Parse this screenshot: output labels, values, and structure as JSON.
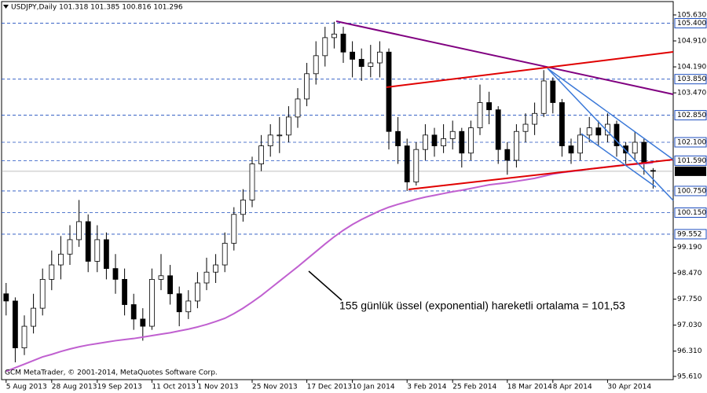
{
  "chart_data": {
    "type": "candlestick",
    "title": "USDJPY,Daily  101.318 101.385 100.816 101.296",
    "copyright": "GCM MetaTrader, © 2001-2014, MetaQuotes Software Corp.",
    "annotation": "155 günlük üssel (exponential) hareketli ortalama = 101,53",
    "ylim": [
      95.52,
      106.0
    ],
    "yticks": [
      {
        "value": 105.63,
        "label": "105.630"
      },
      {
        "value": 104.91,
        "label": "104.910"
      },
      {
        "value": 104.19,
        "label": "104.190"
      },
      {
        "value": 103.47,
        "label": "103.470"
      },
      {
        "value": 99.19,
        "label": "99.190"
      },
      {
        "value": 98.47,
        "label": "98.470"
      },
      {
        "value": 97.75,
        "label": "97.750"
      },
      {
        "value": 97.03,
        "label": "97.030"
      },
      {
        "value": 96.31,
        "label": "96.310"
      },
      {
        "value": 95.61,
        "label": "95.610"
      }
    ],
    "levels": [
      {
        "value": 105.4,
        "label": "105.400"
      },
      {
        "value": 103.85,
        "label": "103.850"
      },
      {
        "value": 102.85,
        "label": "102.850"
      },
      {
        "value": 102.1,
        "label": "102.100"
      },
      {
        "value": 101.59,
        "label": "101.590"
      },
      {
        "value": 100.75,
        "label": "100.750"
      },
      {
        "value": 100.15,
        "label": "100.150"
      },
      {
        "value": 99.552,
        "label": "99.552"
      }
    ],
    "current_price": {
      "value": 101.296,
      "label": "101.296"
    },
    "categories": [
      "5 Aug 2013",
      null,
      null,
      null,
      null,
      "28 Aug 2013",
      null,
      null,
      null,
      null,
      "19 Sep 2013",
      null,
      null,
      null,
      null,
      null,
      "11 Oct 2013",
      null,
      null,
      null,
      null,
      "1 Nov 2013",
      null,
      null,
      null,
      null,
      null,
      "25 Nov 2013",
      null,
      null,
      null,
      null,
      null,
      "17 Dec 2013",
      null,
      null,
      null,
      null,
      "10 Jan 2014",
      null,
      null,
      null,
      null,
      null,
      "3 Feb 2014",
      null,
      null,
      null,
      null,
      "25 Feb 2014",
      null,
      null,
      null,
      null,
      null,
      "18 Mar 2014",
      null,
      null,
      null,
      null,
      "8 Apr 2014",
      null,
      null,
      null,
      null,
      null,
      "30 Apr 2014",
      null,
      null,
      null,
      null,
      null
    ],
    "candles": [
      [
        97.9,
        98.2,
        97.3,
        97.7
      ],
      [
        97.7,
        97.8,
        96.0,
        96.4
      ],
      [
        96.4,
        97.3,
        96.2,
        97.0
      ],
      [
        97.0,
        97.9,
        96.8,
        97.5
      ],
      [
        97.5,
        98.6,
        97.3,
        98.3
      ],
      [
        98.3,
        99.1,
        98.0,
        98.7
      ],
      [
        98.7,
        99.5,
        98.3,
        99.0
      ],
      [
        99.0,
        99.8,
        98.7,
        99.4
      ],
      [
        99.4,
        100.5,
        99.2,
        99.9
      ],
      [
        99.9,
        100.1,
        98.5,
        98.8
      ],
      [
        98.8,
        99.8,
        98.5,
        99.4
      ],
      [
        99.4,
        99.6,
        98.3,
        98.6
      ],
      [
        98.6,
        99.0,
        97.9,
        98.3
      ],
      [
        98.3,
        98.6,
        97.3,
        97.6
      ],
      [
        97.6,
        97.9,
        96.9,
        97.2
      ],
      [
        97.2,
        97.5,
        96.6,
        97.0
      ],
      [
        97.0,
        98.6,
        96.9,
        98.3
      ],
      [
        98.3,
        99.0,
        98.0,
        98.4
      ],
      [
        98.4,
        98.7,
        97.6,
        97.9
      ],
      [
        97.9,
        98.1,
        97.0,
        97.4
      ],
      [
        97.4,
        98.0,
        97.2,
        97.7
      ],
      [
        97.7,
        98.5,
        97.5,
        98.2
      ],
      [
        98.2,
        98.9,
        98.0,
        98.5
      ],
      [
        98.5,
        99.0,
        98.2,
        98.7
      ],
      [
        98.7,
        99.6,
        98.5,
        99.3
      ],
      [
        99.3,
        100.3,
        99.1,
        100.1
      ],
      [
        100.1,
        100.8,
        99.9,
        100.5
      ],
      [
        100.5,
        101.7,
        100.3,
        101.5
      ],
      [
        101.5,
        102.3,
        101.3,
        102.0
      ],
      [
        102.0,
        102.6,
        101.7,
        102.3
      ],
      [
        102.3,
        102.8,
        101.8,
        102.3
      ],
      [
        102.3,
        103.1,
        102.1,
        102.8
      ],
      [
        102.8,
        103.6,
        102.5,
        103.3
      ],
      [
        103.3,
        104.3,
        103.1,
        104.0
      ],
      [
        104.0,
        104.9,
        103.7,
        104.5
      ],
      [
        104.5,
        105.3,
        104.2,
        105.0
      ],
      [
        105.0,
        105.44,
        104.7,
        105.1
      ],
      [
        105.1,
        105.3,
        104.3,
        104.6
      ],
      [
        104.6,
        104.9,
        103.9,
        104.4
      ],
      [
        104.4,
        104.7,
        103.8,
        104.2
      ],
      [
        104.2,
        104.8,
        103.9,
        104.3
      ],
      [
        104.3,
        104.9,
        103.9,
        104.6
      ],
      [
        104.6,
        104.7,
        101.9,
        102.4
      ],
      [
        102.4,
        102.8,
        101.5,
        102.0
      ],
      [
        102.0,
        102.2,
        100.75,
        101.0
      ],
      [
        101.0,
        102.1,
        100.9,
        101.9
      ],
      [
        101.9,
        102.6,
        101.6,
        102.3
      ],
      [
        102.3,
        102.5,
        101.7,
        102.0
      ],
      [
        102.0,
        102.6,
        101.8,
        102.2
      ],
      [
        102.2,
        102.7,
        101.9,
        102.4
      ],
      [
        102.4,
        102.5,
        101.4,
        101.8
      ],
      [
        101.8,
        102.7,
        101.6,
        102.5
      ],
      [
        102.5,
        103.7,
        102.3,
        103.2
      ],
      [
        103.2,
        103.5,
        102.6,
        103.0
      ],
      [
        103.0,
        103.1,
        101.5,
        101.9
      ],
      [
        101.9,
        102.1,
        101.2,
        101.6
      ],
      [
        101.6,
        102.6,
        101.4,
        102.4
      ],
      [
        102.4,
        102.9,
        102.1,
        102.6
      ],
      [
        102.6,
        103.2,
        102.3,
        102.9
      ],
      [
        102.9,
        104.1,
        102.8,
        103.8
      ],
      [
        103.8,
        103.9,
        102.9,
        103.2
      ],
      [
        103.2,
        103.3,
        101.7,
        102.0
      ],
      [
        102.0,
        102.2,
        101.5,
        101.8
      ],
      [
        101.8,
        102.5,
        101.6,
        102.3
      ],
      [
        102.3,
        102.8,
        102.1,
        102.5
      ],
      [
        102.5,
        102.7,
        102.0,
        102.3
      ],
      [
        102.3,
        102.9,
        102.1,
        102.6
      ],
      [
        102.6,
        102.7,
        101.7,
        102.0
      ],
      [
        102.0,
        102.1,
        101.5,
        101.8
      ],
      [
        101.8,
        102.4,
        101.6,
        102.1
      ],
      [
        102.1,
        102.2,
        101.2,
        101.5
      ],
      [
        101.318,
        101.385,
        100.816,
        101.296
      ]
    ],
    "ma": [
      95.75,
      95.85,
      95.95,
      96.05,
      96.15,
      96.22,
      96.3,
      96.37,
      96.43,
      96.48,
      96.52,
      96.56,
      96.6,
      96.63,
      96.66,
      96.7,
      96.74,
      96.78,
      96.82,
      96.87,
      96.92,
      96.98,
      97.05,
      97.13,
      97.22,
      97.35,
      97.5,
      97.67,
      97.85,
      98.05,
      98.25,
      98.45,
      98.65,
      98.86,
      99.07,
      99.28,
      99.48,
      99.66,
      99.82,
      99.96,
      100.08,
      100.2,
      100.3,
      100.38,
      100.45,
      100.52,
      100.58,
      100.63,
      100.68,
      100.73,
      100.77,
      100.82,
      100.87,
      100.92,
      100.95,
      100.98,
      101.02,
      101.06,
      101.1,
      101.16,
      101.22,
      101.26,
      101.29,
      101.32,
      101.36,
      101.39,
      101.42,
      101.45,
      101.47,
      101.49,
      101.51,
      101.53
    ],
    "ma_color": "#c060d0",
    "level_color": "#1f4fbf"
  }
}
